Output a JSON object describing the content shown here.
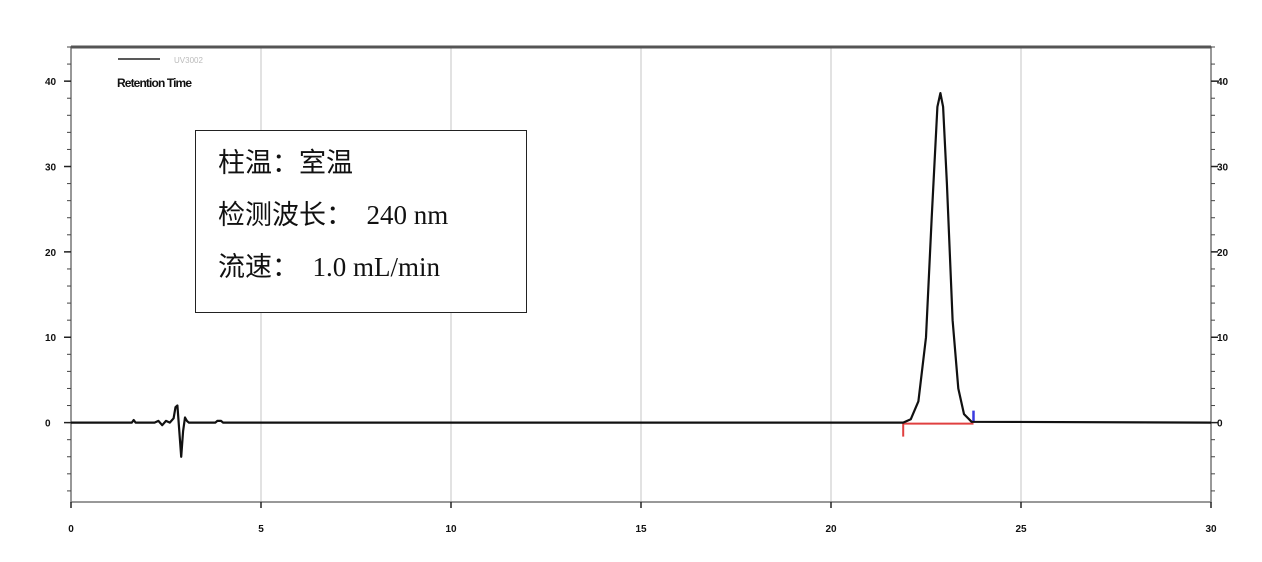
{
  "chart_data": {
    "type": "line",
    "xlim": [
      0,
      30
    ],
    "ylim": [
      -9.3,
      44
    ],
    "x_ticks": [
      0,
      5,
      10,
      15,
      20,
      25,
      30
    ],
    "y_ticks": [
      0,
      10,
      20,
      30,
      40
    ],
    "grid": "vertical",
    "legend": {
      "placement": "top-left",
      "series_name": "UV3002",
      "label": "Retention Time"
    },
    "series": [
      {
        "color": "#111111",
        "x": [
          0,
          1.6,
          1.65,
          1.7,
          2.2,
          2.3,
          2.4,
          2.5,
          2.6,
          2.7,
          2.75,
          2.8,
          2.85,
          2.9,
          2.95,
          3.0,
          3.05,
          3.1,
          3.8,
          3.85,
          3.95,
          4.0,
          21.9,
          22.1,
          22.3,
          22.5,
          22.65,
          22.8,
          22.88,
          22.95,
          23.05,
          23.2,
          23.35,
          23.5,
          23.7,
          30
        ],
        "y": [
          0,
          0,
          0.3,
          0,
          0,
          0.2,
          -0.3,
          0.2,
          0,
          0.5,
          1.8,
          2.0,
          -1,
          -4.0,
          -1,
          0.6,
          0.2,
          0,
          0,
          0.2,
          0.2,
          0,
          0,
          0.4,
          2.5,
          10,
          24,
          37,
          38.6,
          37,
          28,
          12,
          4,
          1,
          0.1,
          0
        ]
      }
    ],
    "peak": {
      "retention_time": 22.88,
      "height": 38.6
    },
    "integration": {
      "start": 21.9,
      "end": 23.75,
      "baseline_color": "#e04040",
      "start_marker_color": "#e04040",
      "end_marker_color": "#3a3ae0"
    }
  },
  "info": {
    "lines": [
      "柱温：室温",
      "检测波长：  240 nm",
      "流速：  1.0 mL/min"
    ]
  }
}
